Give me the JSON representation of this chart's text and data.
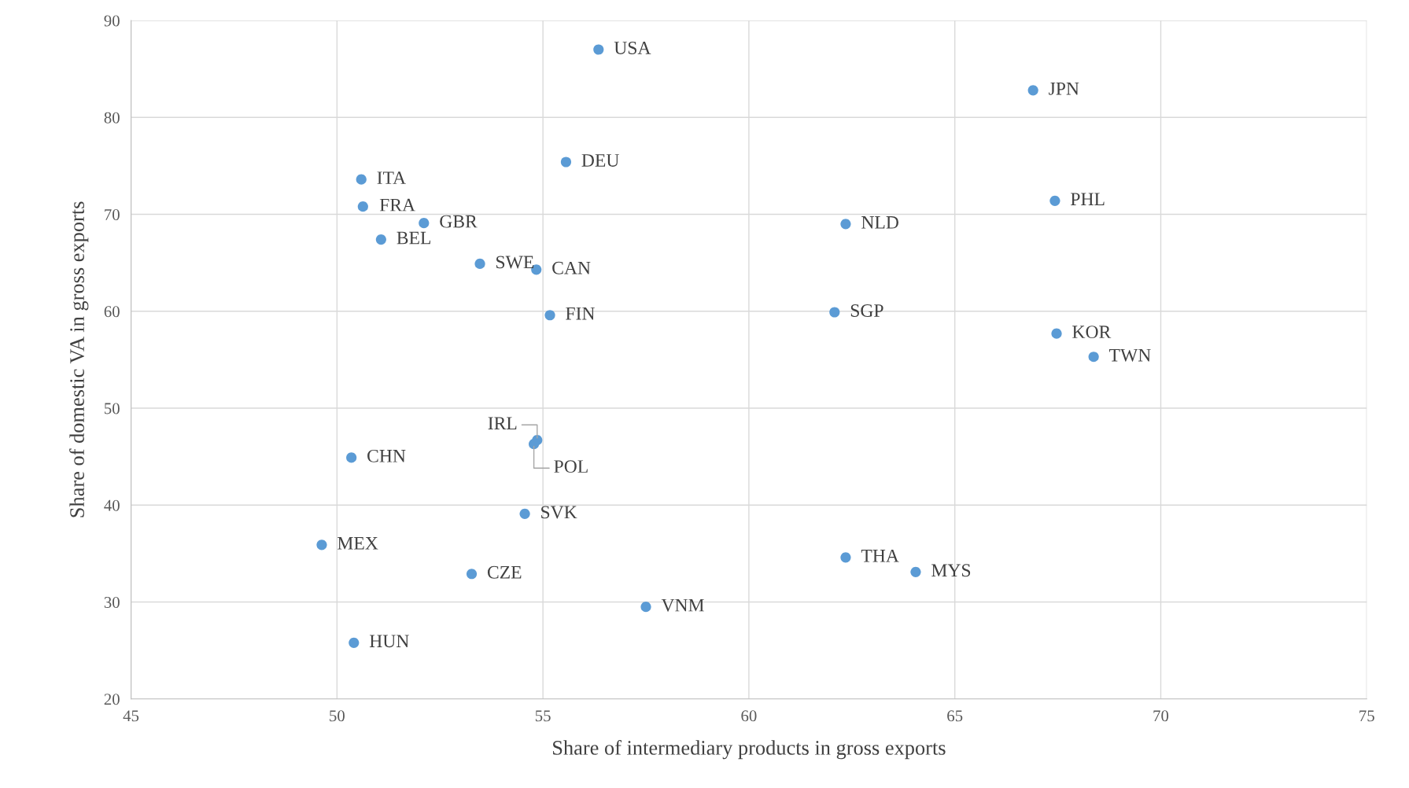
{
  "chart_data": {
    "type": "scatter",
    "xlabel": "Share of intermediary products in gross exports",
    "ylabel": "Share of domestic VA in gross exports",
    "xlim": [
      45,
      75
    ],
    "xticks": [
      45,
      50,
      55,
      60,
      65,
      70,
      75
    ],
    "ylim": [
      20,
      90
    ],
    "yticks": [
      20,
      30,
      40,
      50,
      60,
      70,
      80,
      90
    ],
    "grid": true,
    "marker": "circle",
    "series": [
      {
        "color": "#5b9bd5",
        "x": [
          56.35,
          66.9,
          55.56,
          50.59,
          67.43,
          50.63,
          52.11,
          62.35,
          51.07,
          53.47,
          54.84,
          55.17,
          62.08,
          67.47,
          68.37,
          54.86,
          54.78,
          50.35,
          54.56,
          49.63,
          62.35,
          64.05,
          53.27,
          57.5,
          50.41
        ],
        "values": [
          87.0,
          82.8,
          75.4,
          73.6,
          71.4,
          70.8,
          69.1,
          69.0,
          67.4,
          64.9,
          64.3,
          59.6,
          59.9,
          57.7,
          55.3,
          46.7,
          46.3,
          44.9,
          39.1,
          35.9,
          34.6,
          33.1,
          32.9,
          29.5,
          25.8
        ]
      }
    ],
    "annotations": [
      {
        "text": "USA",
        "x": 56.35,
        "y": 87.0
      },
      {
        "text": "JPN",
        "x": 66.9,
        "y": 82.8
      },
      {
        "text": "DEU",
        "x": 55.56,
        "y": 75.4
      },
      {
        "text": "ITA",
        "x": 50.59,
        "y": 73.6
      },
      {
        "text": "PHL",
        "x": 67.43,
        "y": 71.4
      },
      {
        "text": "FRA",
        "x": 50.63,
        "y": 70.8
      },
      {
        "text": "GBR",
        "x": 52.11,
        "y": 69.1
      },
      {
        "text": "NLD",
        "x": 62.35,
        "y": 69.0
      },
      {
        "text": "BEL",
        "x": 51.07,
        "y": 67.4
      },
      {
        "text": "SWE",
        "x": 53.47,
        "y": 64.9
      },
      {
        "text": "CAN",
        "x": 54.84,
        "y": 64.3
      },
      {
        "text": "FIN",
        "x": 55.17,
        "y": 59.6
      },
      {
        "text": "SGP",
        "x": 62.08,
        "y": 59.9
      },
      {
        "text": "KOR",
        "x": 67.47,
        "y": 57.7
      },
      {
        "text": "TWN",
        "x": 68.37,
        "y": 55.3
      },
      {
        "text": "IRL",
        "x": 54.86,
        "y": 46.7
      },
      {
        "text": "POL",
        "x": 54.78,
        "y": 46.3
      },
      {
        "text": "CHN",
        "x": 50.35,
        "y": 44.9
      },
      {
        "text": "SVK",
        "x": 54.56,
        "y": 39.1
      },
      {
        "text": "MEX",
        "x": 49.63,
        "y": 35.9
      },
      {
        "text": "THA",
        "x": 62.35,
        "y": 34.6
      },
      {
        "text": "MYS",
        "x": 64.05,
        "y": 33.1
      },
      {
        "text": "CZE",
        "x": 53.27,
        "y": 32.9
      },
      {
        "text": "VNM",
        "x": 57.5,
        "y": 29.5
      },
      {
        "text": "HUN",
        "x": 50.41,
        "y": 25.8
      }
    ]
  }
}
